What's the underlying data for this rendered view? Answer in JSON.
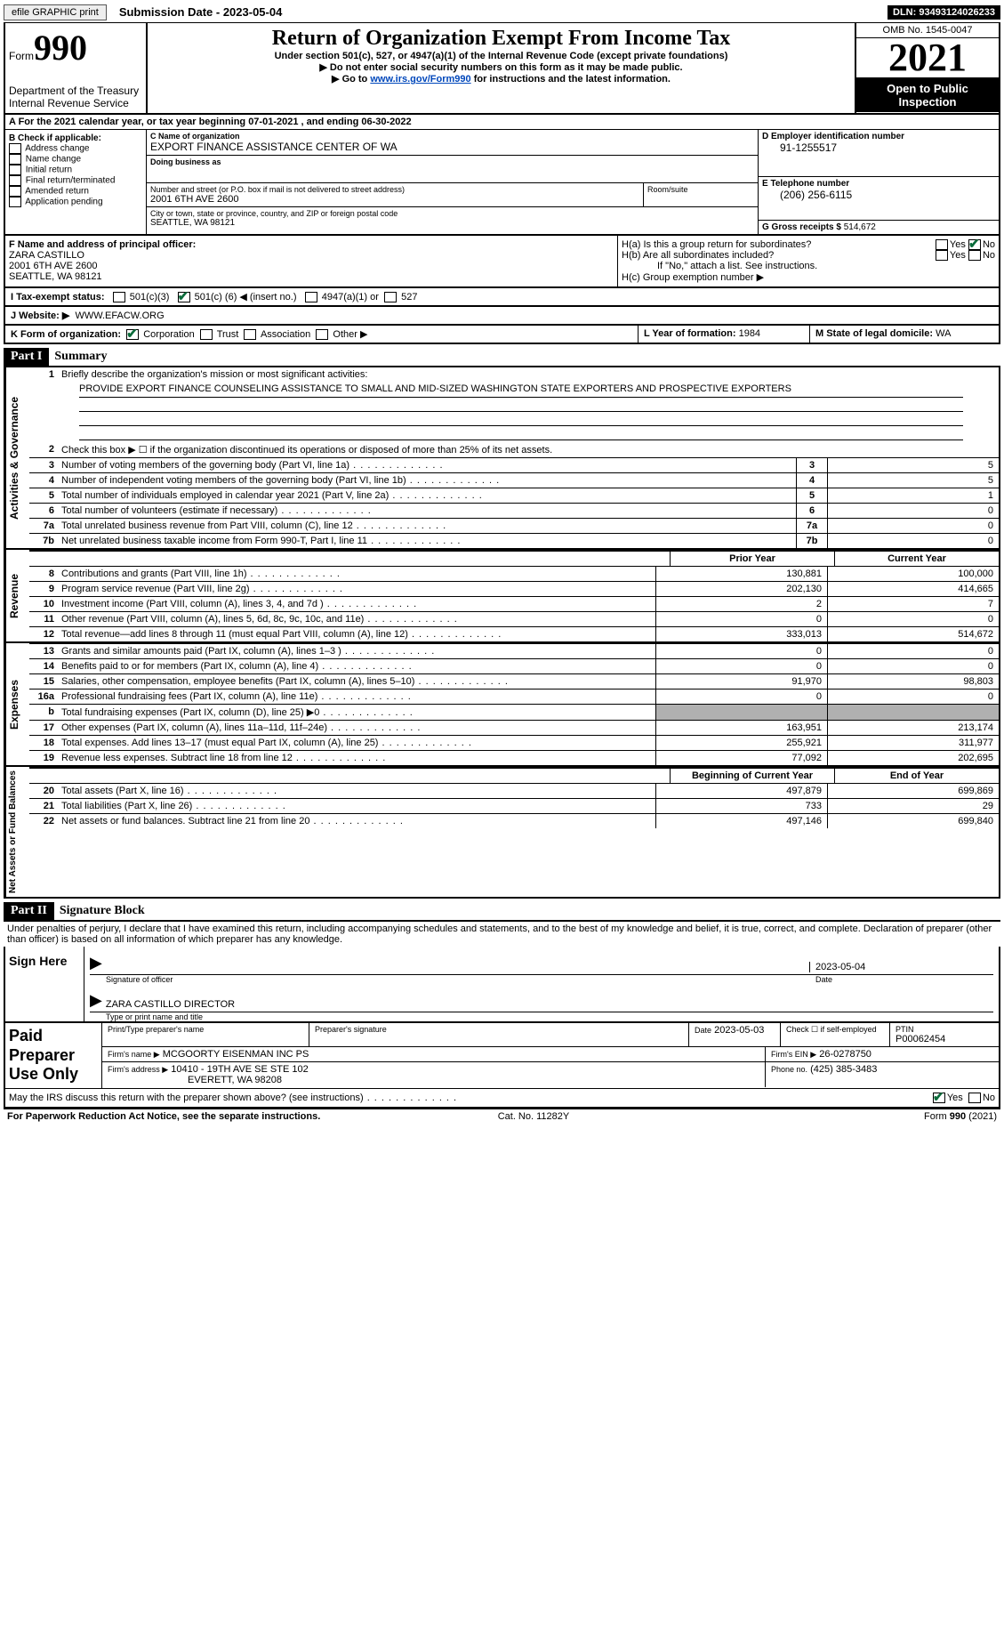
{
  "topbar": {
    "efile": "efile GRAPHIC print",
    "submission": "Submission Date - 2023-05-04",
    "dln": "DLN: 93493124026233"
  },
  "header": {
    "form_word": "Form",
    "form_num": "990",
    "dept": "Department of the Treasury",
    "irs": "Internal Revenue Service",
    "title": "Return of Organization Exempt From Income Tax",
    "sub1": "Under section 501(c), 527, or 4947(a)(1) of the Internal Revenue Code (except private foundations)",
    "sub2": "▶ Do not enter social security numbers on this form as it may be made public.",
    "sub3_a": "▶ Go to ",
    "sub3_link": "www.irs.gov/Form990",
    "sub3_b": " for instructions and the latest information.",
    "omb": "OMB No. 1545-0047",
    "year": "2021",
    "open": "Open to Public Inspection"
  },
  "A": "A For the 2021 calendar year, or tax year beginning 07-01-2021    , and ending 06-30-2022",
  "B": {
    "label": "B Check if applicable:",
    "opts": [
      "Address change",
      "Name change",
      "Initial return",
      "Final return/terminated",
      "Amended return",
      "Application pending"
    ]
  },
  "C": {
    "name_lbl": "C Name of organization",
    "name": "EXPORT FINANCE ASSISTANCE CENTER OF WA",
    "dba_lbl": "Doing business as",
    "dba": "",
    "addr_lbl": "Number and street (or P.O. box if mail is not delivered to street address)",
    "addr": "2001 6TH AVE 2600",
    "room_lbl": "Room/suite",
    "city_lbl": "City or town, state or province, country, and ZIP or foreign postal code",
    "city": "SEATTLE, WA  98121"
  },
  "D": {
    "lbl": "D Employer identification number",
    "val": "91-1255517"
  },
  "E": {
    "lbl": "E Telephone number",
    "val": "(206) 256-6115"
  },
  "G": {
    "lbl": "G Gross receipts $",
    "val": "514,672"
  },
  "F": {
    "lbl": "F  Name and address of principal officer:",
    "name": "ZARA CASTILLO",
    "addr1": "2001 6TH AVE 2600",
    "addr2": "SEATTLE, WA  98121"
  },
  "H": {
    "a": "H(a)  Is this a group return for subordinates?",
    "b": "H(b)  Are all subordinates included?",
    "note": "If \"No,\" attach a list. See instructions.",
    "c": "H(c)  Group exemption number ▶",
    "yes": "Yes",
    "no": "No"
  },
  "I": {
    "lbl": "I   Tax-exempt status:",
    "o1": "501(c)(3)",
    "o2a": "501(c) (",
    "o2n": "6",
    "o2b": ") ◀ (insert no.)",
    "o3": "4947(a)(1) or",
    "o4": "527"
  },
  "J": {
    "lbl": "J   Website: ▶",
    "val": "WWW.EFACW.ORG"
  },
  "K": {
    "lbl": "K Form of organization:",
    "o1": "Corporation",
    "o2": "Trust",
    "o3": "Association",
    "o4": "Other ▶"
  },
  "L": {
    "lbl": "L Year of formation:",
    "val": "1984"
  },
  "M": {
    "lbl": "M State of legal domicile:",
    "val": "WA"
  },
  "part1": {
    "bar": "Part I",
    "title": "Summary",
    "vlabels": [
      "Activities & Governance",
      "Revenue",
      "Expenses",
      "Net Assets or Fund Balances"
    ],
    "line1_lbl": "Briefly describe the organization's mission or most significant activities:",
    "mission": "PROVIDE EXPORT FINANCE COUNSELING ASSISTANCE TO SMALL AND MID-SIZED WASHINGTON STATE EXPORTERS AND PROSPECTIVE EXPORTERS",
    "line2": "Check this box ▶ ☐ if the organization discontinued its operations or disposed of more than 25% of its net assets.",
    "rows_top": [
      {
        "n": "3",
        "t": "Number of voting members of the governing body (Part VI, line 1a)",
        "v": "5"
      },
      {
        "n": "4",
        "t": "Number of independent voting members of the governing body (Part VI, line 1b)",
        "v": "5"
      },
      {
        "n": "5",
        "t": "Total number of individuals employed in calendar year 2021 (Part V, line 2a)",
        "v": "1"
      },
      {
        "n": "6",
        "t": "Total number of volunteers (estimate if necessary)",
        "v": "0"
      },
      {
        "n": "7a",
        "t": "Total unrelated business revenue from Part VIII, column (C), line 12",
        "v": "0"
      },
      {
        "n": "7b",
        "t": "Net unrelated business taxable income from Form 990-T, Part I, line 11",
        "v": "0"
      }
    ],
    "col_hdr_prior": "Prior Year",
    "col_hdr_curr": "Current Year",
    "rev": [
      {
        "n": "8",
        "t": "Contributions and grants (Part VIII, line 1h)",
        "p": "130,881",
        "c": "100,000"
      },
      {
        "n": "9",
        "t": "Program service revenue (Part VIII, line 2g)",
        "p": "202,130",
        "c": "414,665"
      },
      {
        "n": "10",
        "t": "Investment income (Part VIII, column (A), lines 3, 4, and 7d )",
        "p": "2",
        "c": "7"
      },
      {
        "n": "11",
        "t": "Other revenue (Part VIII, column (A), lines 5, 6d, 8c, 9c, 10c, and 11e)",
        "p": "0",
        "c": "0"
      },
      {
        "n": "12",
        "t": "Total revenue—add lines 8 through 11 (must equal Part VIII, column (A), line 12)",
        "p": "333,013",
        "c": "514,672"
      }
    ],
    "exp": [
      {
        "n": "13",
        "t": "Grants and similar amounts paid (Part IX, column (A), lines 1–3 )",
        "p": "0",
        "c": "0"
      },
      {
        "n": "14",
        "t": "Benefits paid to or for members (Part IX, column (A), line 4)",
        "p": "0",
        "c": "0"
      },
      {
        "n": "15",
        "t": "Salaries, other compensation, employee benefits (Part IX, column (A), lines 5–10)",
        "p": "91,970",
        "c": "98,803"
      },
      {
        "n": "16a",
        "t": "Professional fundraising fees (Part IX, column (A), line 11e)",
        "p": "0",
        "c": "0"
      },
      {
        "n": "b",
        "t": "Total fundraising expenses (Part IX, column (D), line 25) ▶0",
        "p": "",
        "c": "",
        "gray": true
      },
      {
        "n": "17",
        "t": "Other expenses (Part IX, column (A), lines 11a–11d, 11f–24e)",
        "p": "163,951",
        "c": "213,174"
      },
      {
        "n": "18",
        "t": "Total expenses. Add lines 13–17 (must equal Part IX, column (A), line 25)",
        "p": "255,921",
        "c": "311,977"
      },
      {
        "n": "19",
        "t": "Revenue less expenses. Subtract line 18 from line 12",
        "p": "77,092",
        "c": "202,695"
      }
    ],
    "col_hdr_beg": "Beginning of Current Year",
    "col_hdr_end": "End of Year",
    "net": [
      {
        "n": "20",
        "t": "Total assets (Part X, line 16)",
        "p": "497,879",
        "c": "699,869"
      },
      {
        "n": "21",
        "t": "Total liabilities (Part X, line 26)",
        "p": "733",
        "c": "29"
      },
      {
        "n": "22",
        "t": "Net assets or fund balances. Subtract line 21 from line 20",
        "p": "497,146",
        "c": "699,840"
      }
    ]
  },
  "part2": {
    "bar": "Part II",
    "title": "Signature Block",
    "decl": "Under penalties of perjury, I declare that I have examined this return, including accompanying schedules and statements, and to the best of my knowledge and belief, it is true, correct, and complete. Declaration of preparer (other than officer) is based on all information of which preparer has any knowledge.",
    "sign_here": "Sign Here",
    "sig_lbl": "Signature of officer",
    "sig_date": "2023-05-04",
    "date_lbl": "Date",
    "officer": "ZARA CASTILLO  DIRECTOR",
    "officer_lbl": "Type or print name and title",
    "paid": "Paid Preparer Use Only",
    "p_name_lbl": "Print/Type preparer's name",
    "p_sig_lbl": "Preparer's signature",
    "p_date_lbl": "Date",
    "p_date": "2023-05-03",
    "p_se_lbl": "Check ☐ if self-employed",
    "p_ptin_lbl": "PTIN",
    "p_ptin": "P00062454",
    "firm_name_lbl": "Firm's name      ▶",
    "firm_name": "MCGOORTY EISENMAN INC PS",
    "firm_ein_lbl": "Firm's EIN ▶",
    "firm_ein": "26-0278750",
    "firm_addr_lbl": "Firm's address ▶",
    "firm_addr1": "10410 - 19TH AVE SE STE 102",
    "firm_addr2": "EVERETT, WA  98208",
    "firm_phone_lbl": "Phone no.",
    "firm_phone": "(425) 385-3483",
    "discuss": "May the IRS discuss this return with the preparer shown above? (see instructions)",
    "yes": "Yes",
    "no": "No"
  },
  "footer": {
    "pra": "For Paperwork Reduction Act Notice, see the separate instructions.",
    "cat": "Cat. No. 11282Y",
    "form": "Form 990 (2021)"
  }
}
